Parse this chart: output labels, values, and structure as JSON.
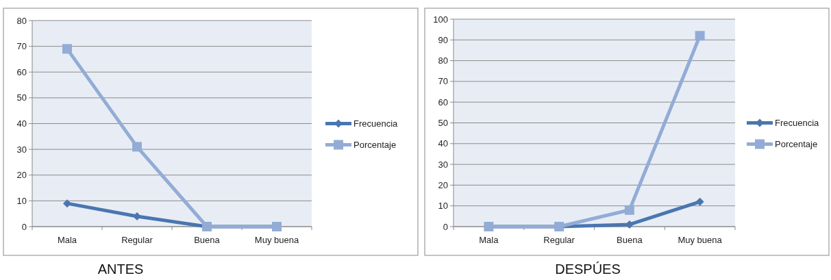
{
  "chart_data": [
    {
      "type": "line",
      "title": "ANTES",
      "categories": [
        "Mala",
        "Regular",
        "Buena",
        "Muy buena"
      ],
      "ylim": [
        0,
        80
      ],
      "yticks": [
        0,
        10,
        20,
        30,
        40,
        50,
        60,
        70,
        80
      ],
      "grid": "y",
      "legend": "right",
      "line_style": "solid",
      "series": [
        {
          "name": "Frecuencia",
          "color": "#4a76b0",
          "marker": "diamond",
          "values": [
            9,
            4,
            0,
            0
          ]
        },
        {
          "name": "Porcentaje",
          "color": "#93acd6",
          "marker": "square",
          "values": [
            69,
            31,
            0,
            0
          ]
        }
      ]
    },
    {
      "type": "line",
      "title": "DESPÚES",
      "categories": [
        "Mala",
        "Regular",
        "Buena",
        "Muy buena"
      ],
      "ylim": [
        0,
        100
      ],
      "yticks": [
        0,
        10,
        20,
        30,
        40,
        50,
        60,
        70,
        80,
        90,
        100
      ],
      "grid": "y",
      "legend": "right",
      "line_style": "solid",
      "series": [
        {
          "name": "Frecuencia",
          "color": "#4a76b0",
          "marker": "diamond",
          "values": [
            0,
            0,
            1,
            12
          ]
        },
        {
          "name": "Porcentaje",
          "color": "#93acd6",
          "marker": "square",
          "values": [
            0,
            0,
            8,
            92
          ]
        }
      ]
    }
  ]
}
